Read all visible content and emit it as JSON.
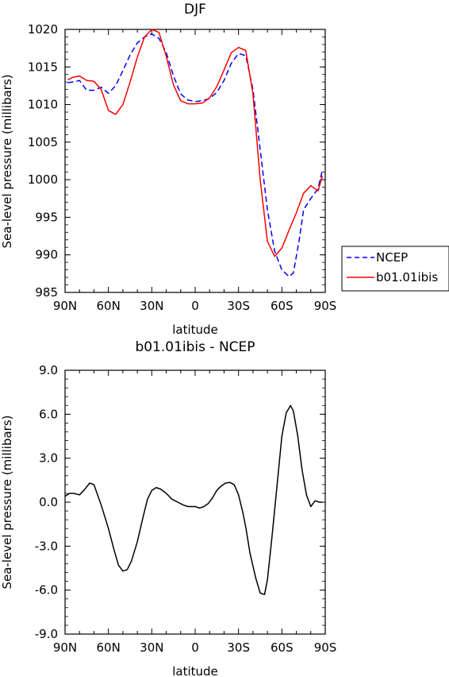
{
  "chart_data": [
    {
      "type": "line",
      "title": "DJF",
      "xlabel": "latitude",
      "ylabel": "Sea-level pressure (millibars)",
      "xlim": [
        -90,
        90
      ],
      "ylim": [
        985,
        1020
      ],
      "x_ticks": [
        -90,
        -60,
        -30,
        0,
        30,
        60,
        90
      ],
      "x_tick_labels": [
        "90N",
        "60N",
        "30N",
        "0",
        "30S",
        "60S",
        "90S"
      ],
      "y_ticks": [
        985,
        990,
        995,
        1000,
        1005,
        1010,
        1015,
        1020
      ],
      "y_tick_labels": [
        "985",
        "990",
        "995",
        "1000",
        "1005",
        "1010",
        "1015",
        "1020"
      ],
      "legend_position": "right",
      "series": [
        {
          "name": "NCEP",
          "color": "#0000ff",
          "dash": "dashed",
          "x": [
            -88,
            -85,
            -80,
            -75,
            -70,
            -65,
            -60,
            -55,
            -50,
            -45,
            -40,
            -35,
            -30,
            -25,
            -20,
            -15,
            -10,
            -5,
            0,
            5,
            10,
            15,
            20,
            25,
            30,
            35,
            40,
            45,
            50,
            55,
            60,
            65,
            68,
            72,
            75,
            80,
            85,
            88
          ],
          "y": [
            1012.9,
            1013.0,
            1013.2,
            1011.9,
            1011.9,
            1012.3,
            1011.5,
            1012.5,
            1014.5,
            1016.6,
            1018.2,
            1019.0,
            1019.4,
            1018.8,
            1016.9,
            1013.8,
            1011.4,
            1010.6,
            1010.4,
            1010.5,
            1010.8,
            1011.6,
            1013.2,
            1015.5,
            1016.8,
            1016.5,
            1012.0,
            1004.0,
            996.0,
            990.5,
            988.0,
            987.1,
            987.6,
            992.0,
            996.0,
            997.5,
            998.8,
            1001.3
          ]
        },
        {
          "name": "b01.01ibis",
          "color": "#ff0000",
          "dash": "solid",
          "x": [
            -88,
            -85,
            -80,
            -75,
            -70,
            -65,
            -60,
            -55,
            -50,
            -45,
            -40,
            -35,
            -30,
            -25,
            -20,
            -15,
            -10,
            -5,
            0,
            5,
            10,
            15,
            20,
            25,
            30,
            35,
            40,
            45,
            50,
            55,
            60,
            65,
            70,
            75,
            80,
            85,
            88
          ],
          "y": [
            1013.3,
            1013.6,
            1013.8,
            1013.2,
            1013.1,
            1012.0,
            1009.2,
            1008.7,
            1010.0,
            1013.0,
            1016.3,
            1019.0,
            1020.0,
            1019.6,
            1016.4,
            1012.6,
            1010.5,
            1010.1,
            1010.1,
            1010.2,
            1010.9,
            1012.4,
            1014.6,
            1016.9,
            1017.6,
            1017.2,
            1011.4,
            1000.0,
            991.8,
            989.8,
            990.9,
            993.3,
            995.6,
            998.2,
            999.2,
            998.5,
            1000.5
          ]
        }
      ]
    },
    {
      "type": "line",
      "title": "b01.01ibis - NCEP",
      "xlabel": "latitude",
      "ylabel": "Sea-level pressure (millibars)",
      "xlim": [
        -90,
        90
      ],
      "ylim": [
        -9,
        9
      ],
      "x_ticks": [
        -90,
        -60,
        -30,
        0,
        30,
        60,
        90
      ],
      "x_tick_labels": [
        "90N",
        "60N",
        "30N",
        "0",
        "30S",
        "60S",
        "90S"
      ],
      "y_ticks": [
        -9,
        -6,
        -3,
        0,
        3,
        6,
        9
      ],
      "y_tick_labels": [
        "-9.0",
        "-6.0",
        "-3.0",
        "0.0",
        "3.0",
        "6.0",
        "9.0"
      ],
      "series": [
        {
          "color": "#000000",
          "dash": "solid",
          "x": [
            -90,
            -87,
            -84,
            -80,
            -77,
            -73,
            -70,
            -65,
            -60,
            -56,
            -53,
            -50,
            -47,
            -44,
            -40,
            -36,
            -33,
            -30,
            -27,
            -24,
            -20,
            -16,
            -12,
            -8,
            -5,
            -2,
            0,
            3,
            6,
            9,
            12,
            15,
            18,
            21,
            24,
            27,
            30,
            33,
            35,
            38,
            42,
            45,
            48,
            50,
            53,
            57,
            60,
            63,
            66,
            68,
            71,
            74,
            77,
            80,
            83,
            86,
            88
          ],
          "y": [
            0.4,
            0.6,
            0.6,
            0.5,
            0.8,
            1.3,
            1.2,
            -0.2,
            -1.8,
            -3.3,
            -4.3,
            -4.7,
            -4.6,
            -4.0,
            -2.7,
            -1.0,
            0.2,
            0.8,
            1.0,
            0.9,
            0.6,
            0.2,
            0.0,
            -0.2,
            -0.3,
            -0.3,
            -0.3,
            -0.4,
            -0.3,
            -0.1,
            0.3,
            0.8,
            1.1,
            1.3,
            1.35,
            1.2,
            0.5,
            -0.7,
            -1.7,
            -3.5,
            -5.2,
            -6.2,
            -6.3,
            -5.3,
            -2.5,
            1.5,
            4.5,
            6.1,
            6.6,
            6.2,
            4.5,
            2.2,
            0.5,
            -0.3,
            0.1,
            0.0,
            0.0
          ]
        }
      ]
    }
  ]
}
